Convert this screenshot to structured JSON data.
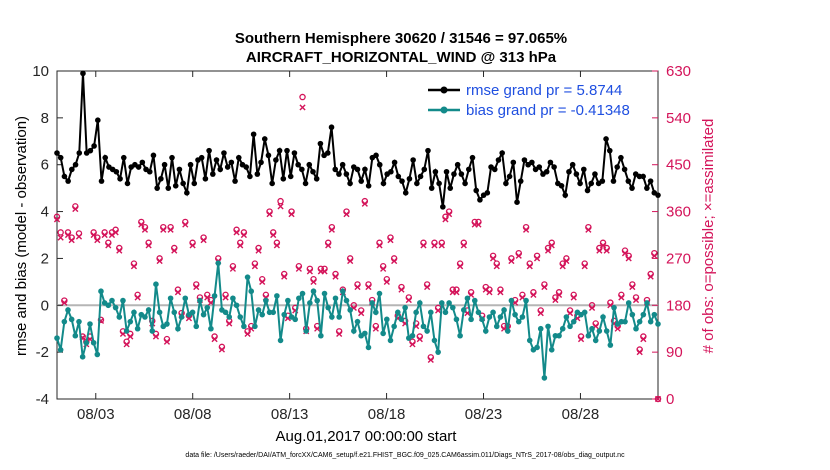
{
  "chart_data": {
    "type": "line",
    "title_line1": "Southern Hemisphere 30620 / 31546 = 97.065%",
    "title_line2": "AIRCRAFT_HORIZONTAL_WIND @ 313 hPa",
    "xlabel": "Aug.01,2017 00:00:00 start",
    "ylabel_left": "rmse and bias (model - observation)",
    "ylabel_right": "# of obs: o=possible; ×=assimilated",
    "footer": "data file: /Users/raeder/DAI/ATM_forcXX/CAM6_setup/f.e21.FHIST_BGC.f09_025.CAM6assim.011/Diags_NTrS_2017-08/obs_diag_output.nc",
    "xlim": [
      1.0,
      32.0
    ],
    "ylim_left": [
      -4,
      10
    ],
    "ylim_right": [
      0,
      630
    ],
    "x_ticks": [
      3,
      8,
      13,
      18,
      23,
      28
    ],
    "x_tick_labels": [
      "08/03",
      "08/08",
      "08/13",
      "08/18",
      "08/23",
      "08/28"
    ],
    "y_ticks_left": [
      -4,
      -2,
      0,
      2,
      4,
      6,
      8,
      10
    ],
    "y_ticks_right": [
      0,
      90,
      180,
      270,
      360,
      450,
      540,
      630
    ],
    "colors": {
      "rmse": "#000000",
      "bias": "#138a8a",
      "obs": "#d4145a",
      "legend_text": "#1f4fe0",
      "zero_line": "#b5b5b5"
    },
    "legend": [
      {
        "name": "rmse grand pr = 5.8744",
        "color": "#000000"
      },
      {
        "name": "bias grand pr = -0.41348",
        "color": "#138a8a"
      }
    ],
    "series": [
      {
        "name": "rmse",
        "axis": "left",
        "values": [
          6.5,
          6.3,
          5.5,
          5.3,
          5.8,
          6.0,
          6.5,
          9.9,
          6.5,
          6.6,
          6.8,
          7.9,
          5.3,
          6.3,
          5.9,
          5.8,
          5.7,
          5.4,
          6.3,
          5.2,
          5.9,
          6.0,
          5.9,
          6.1,
          5.8,
          5.7,
          6.4,
          5.0,
          5.4,
          6.0,
          5.0,
          6.3,
          5.1,
          5.8,
          5.2,
          4.8,
          6.0,
          5.2,
          6.2,
          6.3,
          5.4,
          6.6,
          5.6,
          6.2,
          5.8,
          6.5,
          5.9,
          6.1,
          5.3,
          6.3,
          6.0,
          5.9,
          5.5,
          7.3,
          5.6,
          6.1,
          7.1,
          6.4,
          5.2,
          6.2,
          6.6,
          5.4,
          6.6,
          5.5,
          6.5,
          6.0,
          5.8,
          5.2,
          6.0,
          5.7,
          5.4,
          6.9,
          6.4,
          6.5,
          7.6,
          5.8,
          5.6,
          6.0,
          5.6,
          5.2,
          5.9,
          5.8,
          5.3,
          5.8,
          5.1,
          6.3,
          6.4,
          6.0,
          5.2,
          5.6,
          5.7,
          6.1,
          5.5,
          5.3,
          4.8,
          5.4,
          6.2,
          5.2,
          5.5,
          5.8,
          6.6,
          5.0,
          5.7,
          5.2,
          4.2,
          5.7,
          5.0,
          5.6,
          6.0,
          5.6,
          5.2,
          5.8,
          6.3,
          4.9,
          4.5,
          4.7,
          4.8,
          5.9,
          5.8,
          6.2,
          6.5,
          5.2,
          5.5,
          6.1,
          4.4,
          5.3,
          6.2,
          6.0,
          6.1,
          5.8,
          5.9,
          5.6,
          5.7,
          6.1,
          5.9,
          5.2,
          5.1,
          4.7,
          5.7,
          6.0,
          5.6,
          5.2,
          5.8,
          4.9,
          5.2,
          5.6,
          5.2,
          5.3,
          7.1,
          6.6,
          5.3,
          5.9,
          6.3,
          5.8,
          5.3,
          5.0,
          5.6,
          5.5,
          5.5,
          5.0,
          5.3,
          4.8,
          4.7
        ]
      },
      {
        "name": "bias",
        "axis": "left",
        "values": [
          -1.4,
          -1.9,
          -0.7,
          -0.2,
          -0.6,
          -1.3,
          -0.7,
          -2.2,
          -1.6,
          -0.8,
          -1.6,
          -2.1,
          0.6,
          0.1,
          0.0,
          0.2,
          -0.1,
          -0.5,
          0.2,
          -1.1,
          -0.7,
          -0.3,
          -1.0,
          -0.4,
          -0.5,
          -0.2,
          -1.1,
          0.9,
          -0.3,
          -0.9,
          -0.8,
          0.3,
          -0.3,
          -1.0,
          -0.5,
          0.3,
          -0.4,
          -0.3,
          -0.9,
          0.2,
          -0.4,
          -0.1,
          -1.0,
          0.4,
          1.8,
          -0.2,
          -0.3,
          -0.5,
          0.3,
          0.0,
          -0.5,
          -0.9,
          1.2,
          0.6,
          -0.9,
          -0.2,
          -0.4,
          0.2,
          -0.3,
          -0.3,
          0.4,
          -1.5,
          -0.4,
          0.2,
          -0.5,
          -0.6,
          0.3,
          0.5,
          -1.1,
          0.1,
          0.6,
          0.2,
          -1.3,
          0.5,
          -0.1,
          -0.5,
          0.3,
          -0.5,
          0.6,
          0.2,
          -0.2,
          -1.1,
          -0.7,
          -1.3,
          -1.2,
          -1.8,
          0.1,
          -0.3,
          0.5,
          -1.2,
          -0.6,
          -1.5,
          -0.9,
          -0.3,
          -0.6,
          -0.1,
          -1.4,
          -1.3,
          -0.3,
          0.1,
          -0.9,
          -1.1,
          -0.3,
          -1.5,
          -2.0,
          0.1,
          -0.3,
          0.1,
          -0.1,
          -0.6,
          -1.3,
          -0.2,
          0.3,
          -0.6,
          0.2,
          -0.3,
          -0.6,
          -1.1,
          -0.5,
          -0.3,
          -0.9,
          -0.5,
          -0.2,
          -1.1,
          0.2,
          -0.4,
          -0.7,
          -0.5,
          0.2,
          -1.5,
          -1.9,
          -1.8,
          -1.0,
          -3.1,
          -0.9,
          -1.9,
          -1.3,
          -1.3,
          -1.0,
          -0.5,
          -0.9,
          -0.7,
          -0.3,
          -0.4,
          -0.3,
          -1.3,
          -1.0,
          -1.5,
          -1.1,
          -0.5,
          -1.1,
          -1.7,
          -0.1,
          -0.8,
          -0.7,
          -0.7,
          0.1,
          -0.4,
          -1.0,
          -0.7,
          -0.4,
          0.1,
          -0.7,
          -0.4,
          -0.8
        ]
      },
      {
        "name": "obs possible",
        "axis": "right",
        "values": [
          350,
          320,
          189,
          320,
          310,
          370,
          318,
          120,
          110,
          120,
          320,
          310,
          152,
          320,
          300,
          320,
          325,
          290,
          130,
          110,
          125,
          260,
          200,
          340,
          330,
          300,
          150,
          125,
          270,
          330,
          115,
          330,
          290,
          210,
          165,
          340,
          160,
          300,
          220,
          195,
          310,
          200,
          190,
          120,
          270,
          100,
          200,
          150,
          255,
          325,
          300,
          320,
          130,
          140,
          260,
          290,
          230,
          200,
          360,
          320,
          300,
          380,
          240,
          160,
          360,
          175,
          255,
          580,
          135,
          250,
          230,
          140,
          250,
          250,
          300,
          330,
          240,
          130,
          210,
          360,
          270,
          180,
          220,
          170,
          380,
          220,
          190,
          140,
          300,
          255,
          230,
          310,
          270,
          160,
          215,
          150,
          195,
          110,
          145,
          120,
          300,
          220,
          80,
          300,
          175,
          300,
          350,
          360,
          210,
          210,
          260,
          300,
          170,
          205,
          340,
          340,
          160,
          215,
          210,
          275,
          260,
          210,
          140,
          140,
          270,
          190,
          280,
          200,
          330,
          260,
          205,
          275,
          170,
          220,
          290,
          300,
          195,
          205,
          260,
          270,
          170,
          200,
          160,
          120,
          260,
          330,
          180,
          145,
          290,
          300,
          290,
          185,
          150,
          140,
          200,
          285,
          275,
          220,
          195,
          95,
          120,
          190,
          240,
          280,
          0
        ]
      },
      {
        "name": "obs assimilated",
        "axis": "right",
        "values": [
          345,
          310,
          185,
          315,
          305,
          365,
          312,
          118,
          105,
          115,
          315,
          305,
          150,
          315,
          295,
          315,
          320,
          285,
          125,
          105,
          120,
          255,
          195,
          335,
          325,
          295,
          145,
          120,
          265,
          325,
          110,
          325,
          285,
          205,
          160,
          335,
          155,
          295,
          215,
          190,
          305,
          195,
          185,
          115,
          265,
          95,
          195,
          145,
          250,
          320,
          295,
          315,
          125,
          135,
          255,
          285,
          225,
          195,
          355,
          315,
          295,
          370,
          235,
          155,
          355,
          170,
          250,
          560,
          130,
          245,
          225,
          135,
          245,
          245,
          295,
          325,
          235,
          125,
          205,
          355,
          265,
          175,
          215,
          165,
          375,
          215,
          185,
          135,
          295,
          250,
          225,
          305,
          265,
          155,
          210,
          145,
          190,
          105,
          140,
          115,
          295,
          215,
          75,
          295,
          170,
          295,
          345,
          355,
          205,
          205,
          255,
          295,
          165,
          200,
          335,
          335,
          155,
          210,
          205,
          270,
          255,
          205,
          135,
          135,
          265,
          185,
          275,
          195,
          325,
          255,
          200,
          270,
          165,
          215,
          285,
          295,
          190,
          200,
          255,
          265,
          165,
          195,
          155,
          115,
          255,
          325,
          175,
          140,
          285,
          295,
          285,
          180,
          145,
          135,
          195,
          280,
          270,
          215,
          190,
          90,
          115,
          185,
          235,
          275,
          0
        ]
      }
    ]
  }
}
